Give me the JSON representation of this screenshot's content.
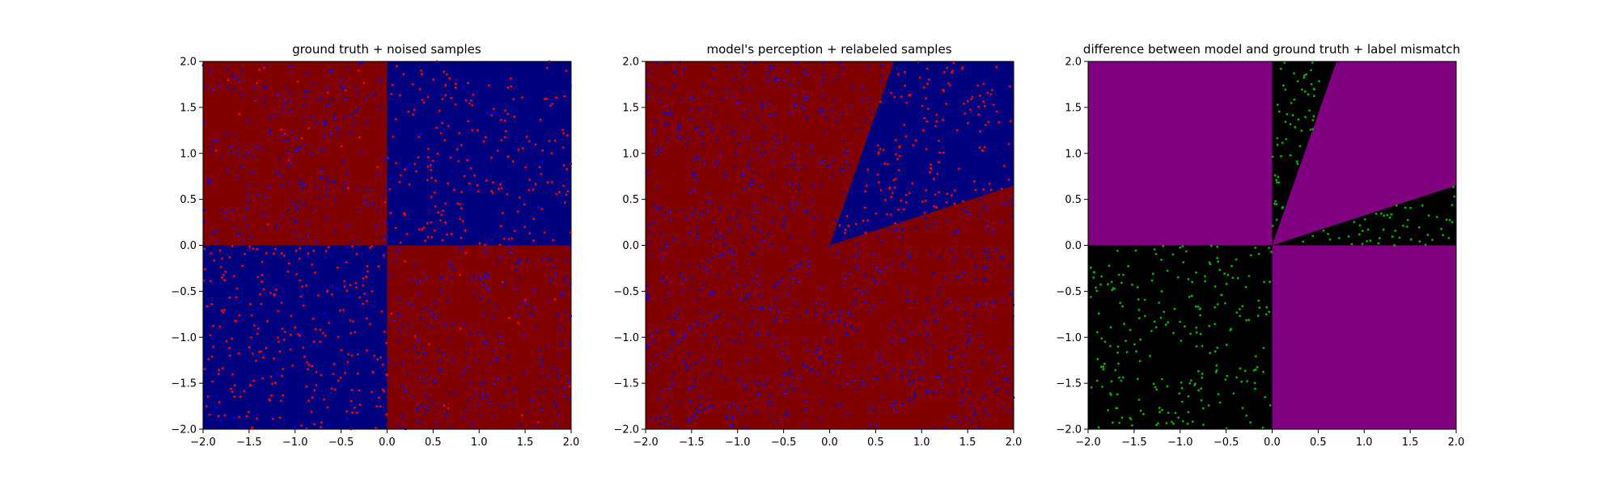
{
  "chart_data": [
    {
      "type": "scatter",
      "title": "ground truth + noised samples",
      "xlim": [
        -2,
        2
      ],
      "ylim": [
        -2,
        2
      ],
      "xticks": [
        -2.0,
        -1.5,
        -1.0,
        -0.5,
        0.0,
        0.5,
        1.0,
        1.5,
        2.0
      ],
      "yticks": [
        -2.0,
        -1.5,
        -1.0,
        -0.5,
        0.0,
        0.5,
        1.0,
        1.5,
        2.0
      ],
      "tick_labels": [
        "−2.0",
        "−1.5",
        "−1.0",
        "−0.5",
        "0.0",
        "0.5",
        "1.0",
        "1.5",
        "2.0"
      ],
      "grid": false,
      "background": {
        "description": "four quadrants by sign of x*y",
        "regions": [
          {
            "rule": "x*y < 0",
            "color": "#800000"
          },
          {
            "rule": "x*y >= 0",
            "color": "#00007f"
          }
        ]
      },
      "samples": {
        "count_approx": 1000,
        "distribution": "uniform over [-2,2] x [-2,2]",
        "colors": {
          "label_0": "#0000ff",
          "label_1": "#ff0000"
        },
        "label_rule": "red where x*y >= 0, blue where x*y < 0, with label noise near the center"
      }
    },
    {
      "type": "scatter",
      "title": "model's perception + relabeled samples",
      "xlim": [
        -2,
        2
      ],
      "ylim": [
        -2,
        2
      ],
      "xticks": [
        -2.0,
        -1.5,
        -1.0,
        -0.5,
        0.0,
        0.5,
        1.0,
        1.5,
        2.0
      ],
      "yticks": [
        -2.0,
        -1.5,
        -1.0,
        -0.5,
        0.0,
        0.5,
        1.0,
        1.5,
        2.0
      ],
      "tick_labels": [
        "−2.0",
        "−1.5",
        "−1.0",
        "−0.5",
        "0.0",
        "0.5",
        "1.0",
        "1.5",
        "2.0"
      ],
      "grid": false,
      "background": {
        "description": "model predicts blue in a wedge of the upper-right quadrant, red elsewhere",
        "wedge_boundary_lines": [
          {
            "from": [
              0.0,
              0.0
            ],
            "to": [
              0.7,
              2.0
            ]
          },
          {
            "from": [
              0.0,
              0.0
            ],
            "to": [
              2.0,
              0.65
            ]
          }
        ],
        "regions": [
          {
            "rule": "inside wedge",
            "color": "#00007f"
          },
          {
            "rule": "outside wedge",
            "color": "#800000"
          }
        ]
      },
      "samples": {
        "count_approx": 1000,
        "colors": {
          "outside_wedge": "#0000ff",
          "inside_wedge": "#ff0000"
        }
      }
    },
    {
      "type": "scatter",
      "title": "difference between model and ground truth + label mismatch",
      "xlim": [
        -2,
        2
      ],
      "ylim": [
        -2,
        2
      ],
      "xticks": [
        -2.0,
        -1.5,
        -1.0,
        -0.5,
        0.0,
        0.5,
        1.0,
        1.5,
        2.0
      ],
      "yticks": [
        -2.0,
        -1.5,
        -1.0,
        -0.5,
        0.0,
        0.5,
        1.0,
        1.5,
        2.0
      ],
      "tick_labels": [
        "−2.0",
        "−1.5",
        "−1.0",
        "−0.5",
        "0.0",
        "0.5",
        "1.0",
        "1.5",
        "2.0"
      ],
      "grid": false,
      "background": {
        "regions": [
          {
            "rule": "agreement (upper-left, lower-right, upper-right wedge)",
            "color": "#800080"
          },
          {
            "rule": "disagreement (lower-left, upper-right outside wedge)",
            "color": "#000000"
          }
        ]
      },
      "samples": {
        "count_approx": 350,
        "colors": {
          "mismatch": "#00b300"
        },
        "location": "mismatched points lie in the black regions"
      }
    }
  ]
}
